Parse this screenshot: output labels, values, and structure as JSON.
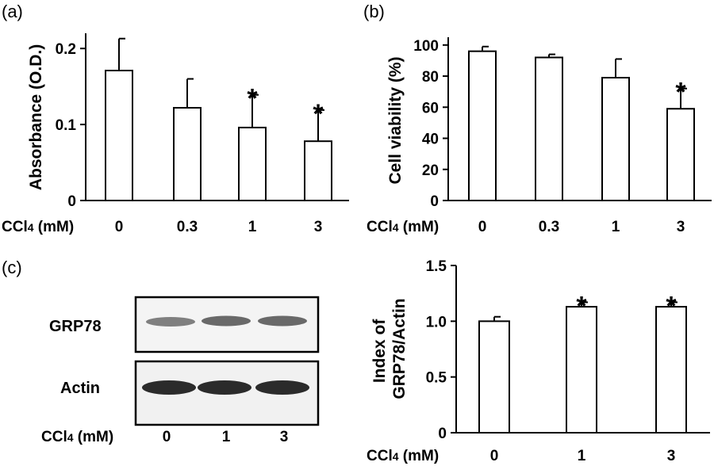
{
  "panels": {
    "a": {
      "letter": "(a)"
    },
    "b": {
      "letter": "(b)"
    },
    "c": {
      "letter": "(c)"
    }
  },
  "blot": {
    "bands": [
      "GRP78",
      "Actin"
    ],
    "xlabel": "CCl4 (mM)",
    "xlabel_main": "CCl",
    "xlabel_sub": "4",
    "xlabel_rest": " (mM)",
    "lanes": [
      "0",
      "1",
      "3"
    ]
  },
  "chart_data": [
    {
      "type": "bar",
      "panel": "(a)",
      "categories": [
        "0",
        "0.3",
        "1",
        "3"
      ],
      "values": [
        0.171,
        0.122,
        0.096,
        0.078
      ],
      "errors": [
        0.042,
        0.038,
        0.043,
        0.041
      ],
      "significant": [
        false,
        false,
        true,
        true
      ],
      "marker": "*",
      "ylabel": "Absorbance (O.D.)",
      "xlabel": "CCl4 (mM)",
      "xlabel_main": "CCl",
      "xlabel_sub": "4",
      "xlabel_rest": " (mM)",
      "ylim": [
        0,
        0.22
      ],
      "yticks": [
        0,
        0.1,
        0.2
      ],
      "ytick_labels": [
        "0",
        "0.1",
        "0.2"
      ]
    },
    {
      "type": "bar",
      "panel": "(b)",
      "categories": [
        "0",
        "0.3",
        "1",
        "3"
      ],
      "values": [
        96,
        92,
        79,
        59
      ],
      "errors": [
        3,
        2,
        12,
        13
      ],
      "significant": [
        false,
        false,
        false,
        true
      ],
      "marker": "*",
      "ylabel": "Cell viability (%)",
      "xlabel": "CCl4 (mM)",
      "xlabel_main": "CCl",
      "xlabel_sub": "4",
      "xlabel_rest": " (mM)",
      "ylim": [
        0,
        105
      ],
      "yticks": [
        0,
        20,
        40,
        60,
        80,
        100
      ],
      "ytick_labels": [
        "0",
        "20",
        "40",
        "60",
        "80",
        "100"
      ]
    },
    {
      "type": "bar",
      "panel": "(c)",
      "categories": [
        "0",
        "1",
        "3"
      ],
      "values": [
        1.0,
        1.13,
        1.13
      ],
      "errors": [
        0.04,
        0.04,
        0.04
      ],
      "significant": [
        false,
        true,
        true
      ],
      "marker": "*",
      "ylabel": "Index of GRP78/Actin",
      "ylabel_lines": [
        "Index of",
        "GRP78/Actin"
      ],
      "xlabel": "CCl4 (mM)",
      "xlabel_main": "CCl",
      "xlabel_sub": "4",
      "xlabel_rest": " (mM)",
      "ylim": [
        0,
        1.5
      ],
      "yticks": [
        0,
        0.5,
        1.0,
        1.5
      ],
      "ytick_labels": [
        "0",
        "0.5",
        "1.0",
        "1.5"
      ]
    }
  ]
}
